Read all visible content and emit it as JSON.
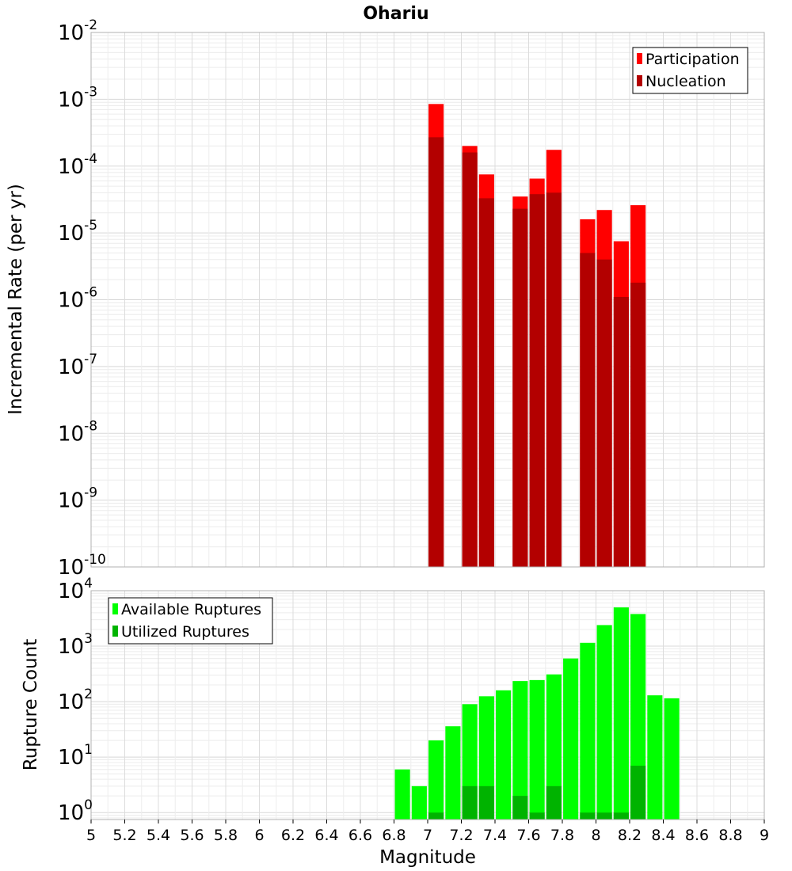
{
  "chart_data": [
    {
      "type": "bar",
      "title": "Ohariu",
      "xlabel": "Magnitude",
      "ylabel": "Incremental Rate (per yr)",
      "yscale": "log",
      "xlim": [
        5,
        9
      ],
      "ylim": [
        1e-10,
        0.01
      ],
      "ytick_exponents": [
        -10,
        -9,
        -8,
        -7,
        -6,
        -5,
        -4,
        -3,
        -2
      ],
      "xticks": [
        "5",
        "5.2",
        "5.4",
        "5.6",
        "5.8",
        "6",
        "6.2",
        "6.4",
        "6.6",
        "6.8",
        "7",
        "7.2",
        "7.4",
        "7.6",
        "7.8",
        "8",
        "8.2",
        "8.4",
        "8.6",
        "8.8",
        "9"
      ],
      "grid": true,
      "legend_position": "top-right",
      "x": [
        7.05,
        7.25,
        7.35,
        7.55,
        7.65,
        7.75,
        7.95,
        8.05,
        8.15,
        8.25
      ],
      "series": [
        {
          "name": "Participation",
          "color": "#ff0000",
          "values": [
            0.00085,
            0.0002,
            7.5e-05,
            3.5e-05,
            6.5e-05,
            0.000175,
            1.6e-05,
            2.2e-05,
            7.5e-06,
            2.6e-05
          ]
        },
        {
          "name": "Nucleation",
          "color": "#b30000",
          "values": [
            0.00027,
            0.00016,
            3.3e-05,
            2.3e-05,
            3.8e-05,
            4e-05,
            5e-06,
            4e-06,
            1.1e-06,
            1.8e-06
          ]
        }
      ]
    },
    {
      "type": "bar",
      "title": "",
      "xlabel": "Magnitude",
      "ylabel": "Rupture Count",
      "yscale": "log",
      "xlim": [
        5,
        9
      ],
      "ylim": [
        0.75,
        10000
      ],
      "ytick_exponents": [
        0,
        1,
        2,
        3,
        4
      ],
      "grid": true,
      "legend_position": "top-left",
      "x": [
        6.85,
        6.95,
        7.05,
        7.15,
        7.25,
        7.35,
        7.45,
        7.55,
        7.65,
        7.75,
        7.85,
        7.95,
        8.05,
        8.15,
        8.25,
        8.35,
        8.45
      ],
      "series": [
        {
          "name": "Available Ruptures",
          "color": "#00ff00",
          "values": [
            6,
            3,
            20,
            36,
            90,
            125,
            160,
            235,
            245,
            310,
            600,
            1150,
            2400,
            5000,
            3800,
            130,
            115
          ]
        },
        {
          "name": "Utilized Ruptures",
          "color": "#00b300",
          "values": [
            0,
            0,
            1,
            0,
            3,
            3,
            0,
            2,
            1,
            3,
            0,
            1,
            1,
            1,
            7,
            0,
            0
          ]
        }
      ]
    }
  ]
}
